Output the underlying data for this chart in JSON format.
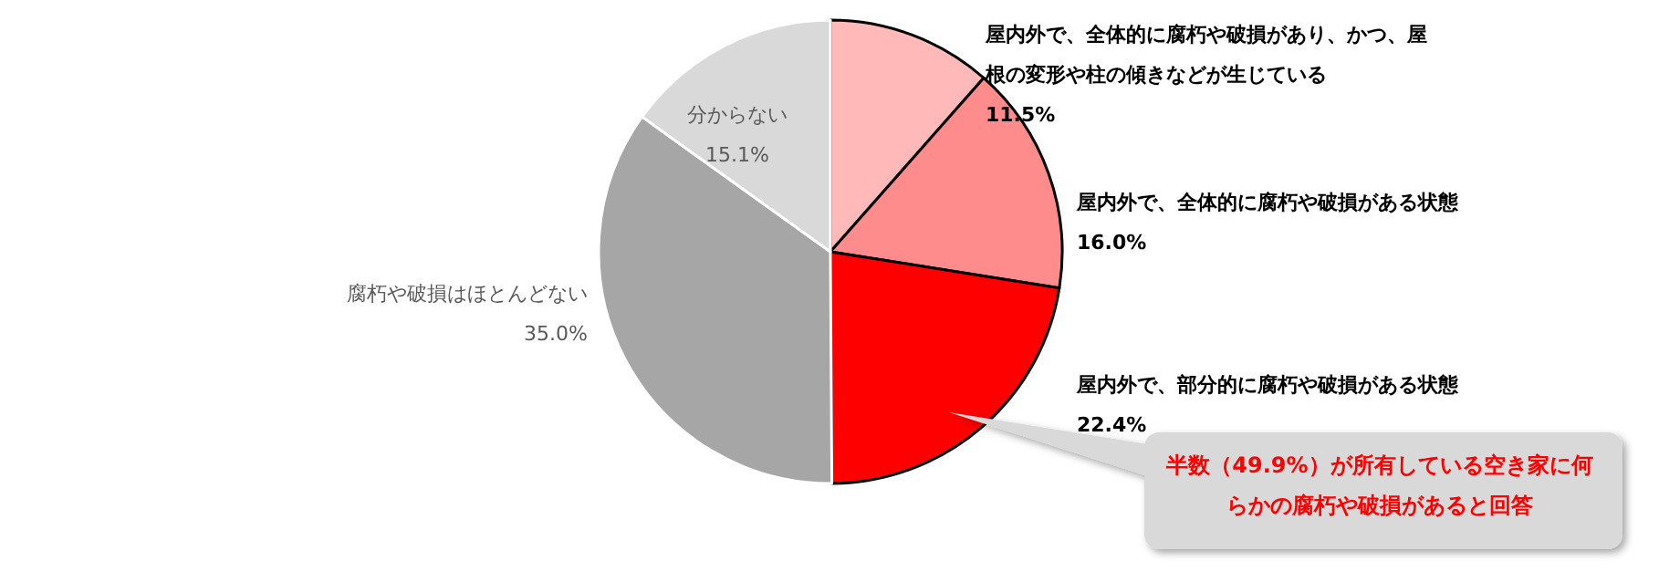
{
  "chart_data": {
    "type": "pie",
    "categories": [
      "屋内外で、全体的に腐朽や破損があり、かつ、屋根の変形や柱の傾きなどが生じている",
      "屋内外で、全体的に腐朽や破損がある状態",
      "屋内外で、部分的に腐朽や破損がある状態",
      "腐朽や破損はほとんどない",
      "分からない"
    ],
    "values": [
      11.5,
      16.0,
      22.4,
      35.0,
      15.1
    ],
    "value_labels": [
      "11.5%",
      "16.0%",
      "22.4%",
      "35.0%",
      "15.1%"
    ],
    "colors": [
      "#ffb9b9",
      "#ff8c8c",
      "#ff0000",
      "#a6a6a6",
      "#d9d9d9"
    ],
    "annotations": [
      "半数（49.9%）が所有している空き家に何らかの腐朽や破損があると回答"
    ],
    "legend": false
  }
}
